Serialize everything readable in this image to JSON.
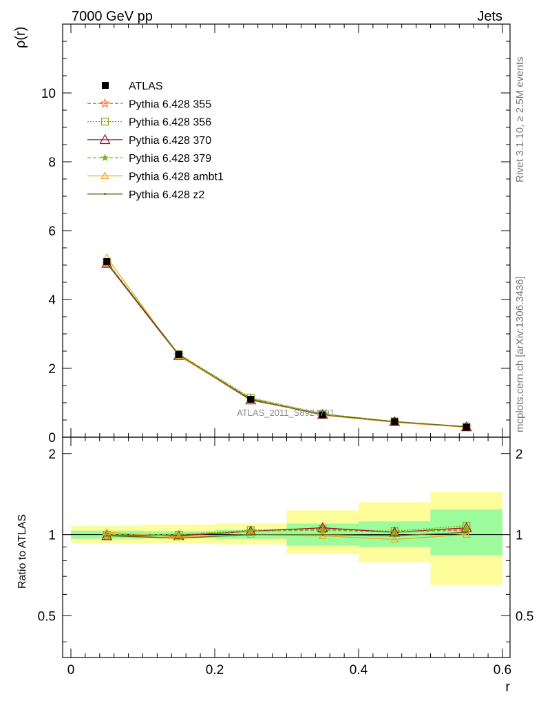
{
  "header": {
    "left_title": "7000 GeV pp",
    "right_title": "Jets",
    "side_text_top": "Rivet 3.1.10, ≥ 2.5M events",
    "side_text_bottom": "mcplots.cern.ch [arXiv:1306.3436]",
    "analysis_label": "ATLAS_2011_S8924791"
  },
  "colors": {
    "ATLAS": "#000000",
    "p355": "#ff6a1a",
    "p356": "#8aa31a",
    "p370": "#a0102a",
    "p379": "#7ab51a",
    "ambt1": "#f2a51a",
    "z2": "#5e6b1a",
    "band_inner": "#9cfc9c",
    "band_outer": "#fdfd9c"
  },
  "chart_data": [
    {
      "type": "line",
      "ylabel": "ρ(r)",
      "xlabel": "",
      "ylim": [
        0,
        12
      ],
      "xlim": [
        0,
        0.6
      ],
      "yticks": [
        0,
        2,
        4,
        6,
        8,
        10
      ],
      "ytick_labels": [
        "0",
        "2",
        "4",
        "6",
        "8",
        "10"
      ],
      "legend_position": "top-left",
      "x": [
        0.05,
        0.15,
        0.25,
        0.35,
        0.45,
        0.55
      ],
      "data": {
        "name": "ATLAS",
        "values": [
          5.1,
          2.4,
          1.1,
          0.65,
          0.45,
          0.29
        ],
        "errors": [
          0.1,
          0.05,
          0.04,
          0.03,
          0.02,
          0.02
        ]
      },
      "series": [
        {
          "key": "p355",
          "name": "Pythia 6.428 355",
          "values": [
            5.05,
            2.38,
            1.12,
            0.67,
            0.45,
            0.3
          ]
        },
        {
          "key": "p356",
          "name": "Pythia 6.428 356",
          "values": [
            5.08,
            2.42,
            1.15,
            0.68,
            0.46,
            0.31
          ]
        },
        {
          "key": "p370",
          "name": "Pythia 6.428 370",
          "values": [
            5.05,
            2.37,
            1.08,
            0.66,
            0.45,
            0.3
          ]
        },
        {
          "key": "p379",
          "name": "Pythia 6.428 379",
          "values": [
            5.1,
            2.39,
            1.13,
            0.67,
            0.45,
            0.3
          ]
        },
        {
          "key": "ambt1",
          "name": "Pythia 6.428 ambt1",
          "values": [
            5.22,
            2.36,
            1.1,
            0.64,
            0.43,
            0.29
          ]
        },
        {
          "key": "z2",
          "name": "Pythia 6.428 z2",
          "values": [
            5.07,
            2.4,
            1.1,
            0.65,
            0.45,
            0.3
          ]
        }
      ]
    },
    {
      "type": "line",
      "ylabel": "Ratio to ATLAS",
      "xlabel": "r",
      "ylim": [
        0.35,
        2.3
      ],
      "xlim": [
        0,
        0.6
      ],
      "yticks": [
        0.5,
        1,
        2
      ],
      "ytick_labels": [
        "0.5",
        "1",
        "2"
      ],
      "xticks": [
        0,
        0.2,
        0.4,
        0.6
      ],
      "xtick_labels": [
        "0",
        "0.2",
        "0.4",
        "0.6"
      ],
      "x": [
        0.05,
        0.15,
        0.25,
        0.35,
        0.45,
        0.55
      ],
      "bins": [
        [
          0,
          0.1
        ],
        [
          0.1,
          0.2
        ],
        [
          0.2,
          0.3
        ],
        [
          0.3,
          0.4
        ],
        [
          0.4,
          0.5
        ],
        [
          0.5,
          0.6
        ]
      ],
      "band_inner": [
        [
          0.965,
          1.035
        ],
        [
          0.97,
          1.03
        ],
        [
          0.965,
          1.04
        ],
        [
          0.91,
          1.1
        ],
        [
          0.9,
          1.12
        ],
        [
          0.84,
          1.24
        ]
      ],
      "band_outer": [
        [
          0.93,
          1.08
        ],
        [
          0.93,
          1.09
        ],
        [
          0.92,
          1.1
        ],
        [
          0.85,
          1.23
        ],
        [
          0.79,
          1.32
        ],
        [
          0.65,
          1.44
        ]
      ],
      "series": [
        {
          "key": "p355",
          "name": "Pythia 6.428 355",
          "values": [
            0.99,
            0.99,
            1.03,
            1.05,
            1.02,
            1.04
          ]
        },
        {
          "key": "p356",
          "name": "Pythia 6.428 356",
          "values": [
            1.0,
            1.0,
            1.04,
            1.05,
            1.03,
            1.08
          ]
        },
        {
          "key": "p370",
          "name": "Pythia 6.428 370",
          "values": [
            0.99,
            0.99,
            1.03,
            1.06,
            1.02,
            1.06
          ]
        },
        {
          "key": "p379",
          "name": "Pythia 6.428 379",
          "values": [
            1.0,
            1.0,
            1.03,
            1.04,
            1.02,
            1.05
          ]
        },
        {
          "key": "ambt1",
          "name": "Pythia 6.428 ambt1",
          "values": [
            1.02,
            0.98,
            1.0,
            0.99,
            0.96,
            1.0
          ]
        },
        {
          "key": "z2",
          "name": "Pythia 6.428 z2",
          "values": [
            0.99,
            0.97,
            1.0,
            1.0,
            0.99,
            1.02
          ]
        }
      ]
    }
  ]
}
